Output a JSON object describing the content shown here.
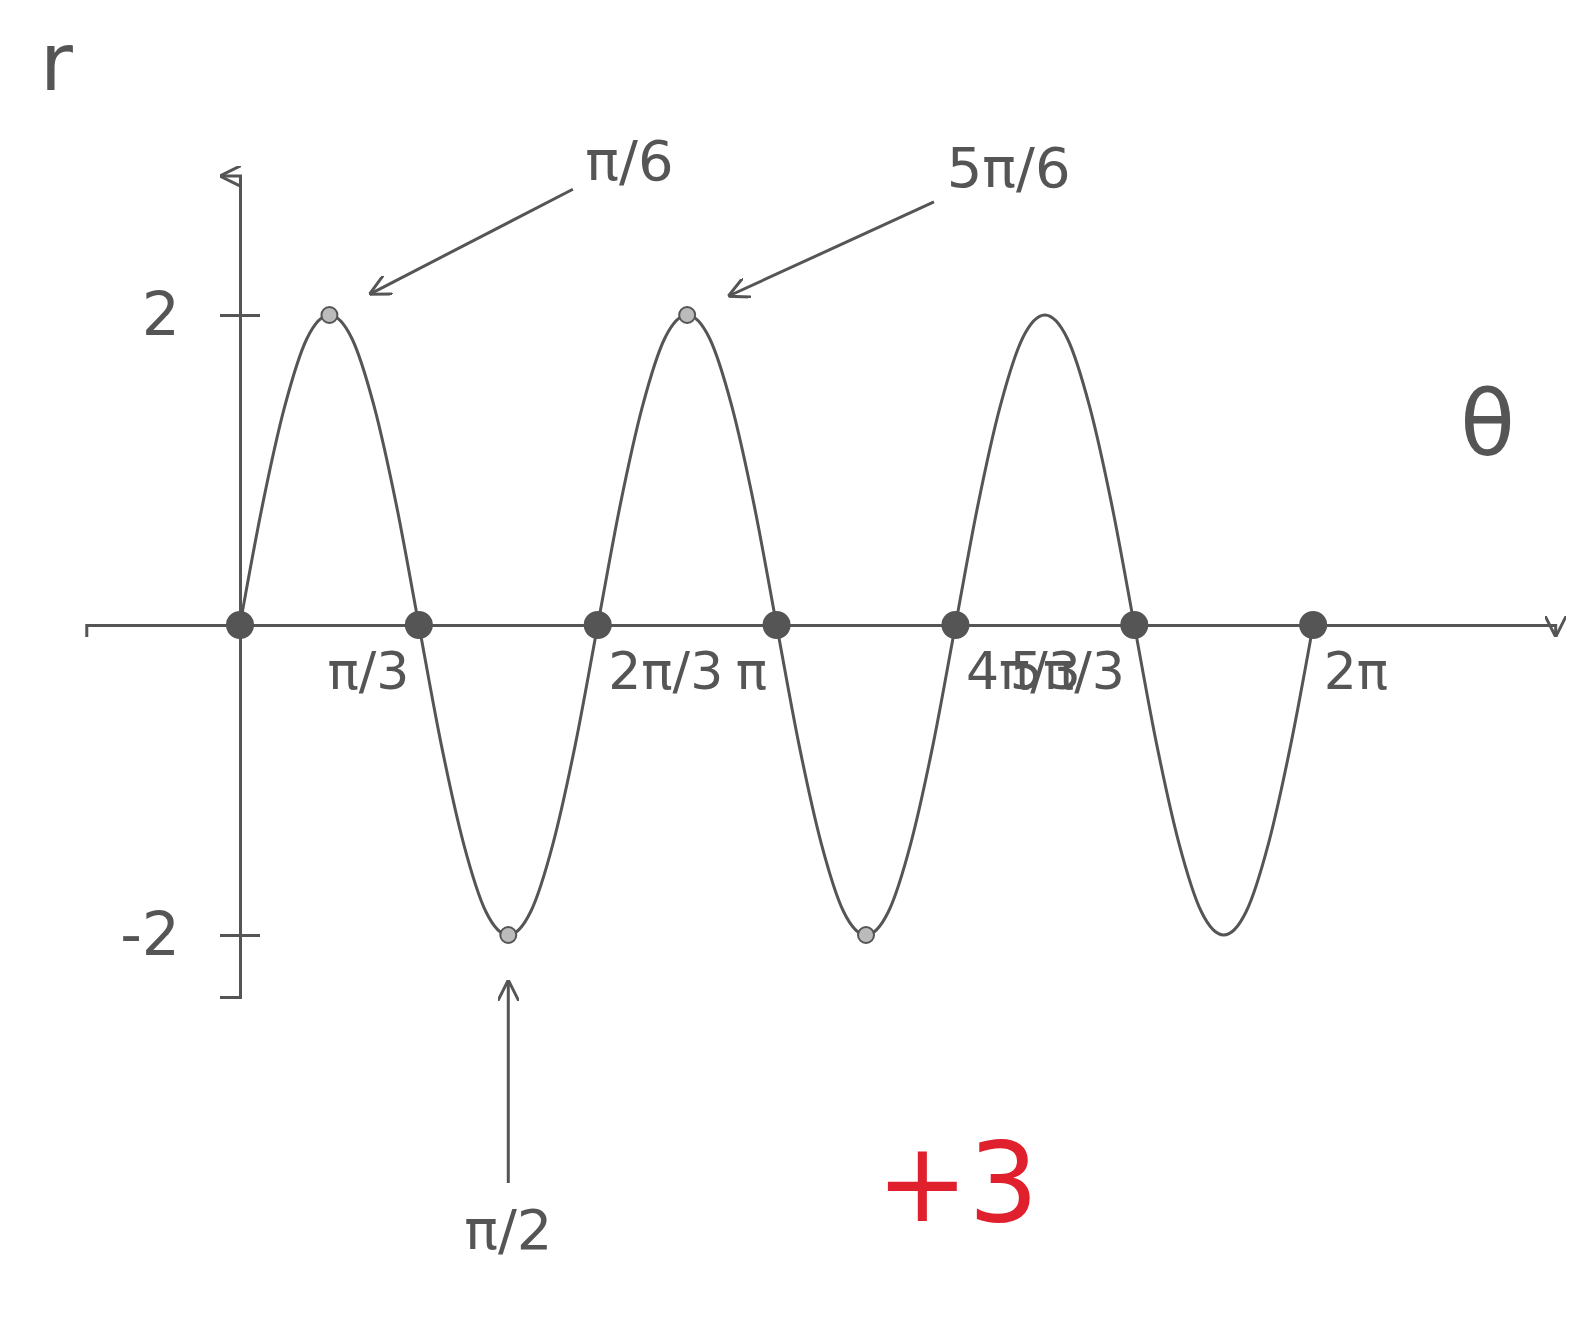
{
  "chart_data": {
    "type": "line",
    "x_label": "θ",
    "y_label": "r",
    "xlim": [
      -0.9,
      7.7
    ],
    "ylim": [
      -2.4,
      2.9
    ],
    "xticks": [
      {
        "value": 1.0472,
        "label": "π/3"
      },
      {
        "value": 2.0944,
        "label": "2π/3"
      },
      {
        "value": 3.1416,
        "label": "π"
      },
      {
        "value": 4.1888,
        "label": "4π/3"
      },
      {
        "value": 5.236,
        "label": "5π/3"
      },
      {
        "value": 6.2832,
        "label": "2π"
      }
    ],
    "yticks": [
      -2,
      2
    ],
    "grid": false,
    "series": [
      {
        "type": "line",
        "color": "#555555",
        "line_style": "solid",
        "x": [
          0,
          0.1309,
          0.2618,
          0.3927,
          0.5236,
          0.6545,
          0.7854,
          0.9163,
          1.0472,
          1.1781,
          1.309,
          1.4399,
          1.5708,
          1.7017,
          1.8326,
          1.9635,
          2.0944,
          2.2253,
          2.3562,
          2.4871,
          2.618,
          2.7489,
          2.8798,
          3.0107,
          3.1416,
          3.2725,
          3.4034,
          3.5343,
          3.6652,
          3.7961,
          3.927,
          4.0579,
          4.1888,
          4.3197,
          4.4506,
          4.5815,
          4.7124,
          4.8433,
          4.9742,
          5.1051,
          5.236,
          5.3669,
          5.4978,
          5.6287,
          5.7596,
          5.8905,
          6.0214,
          6.1523,
          6.2832
        ],
        "values": [
          0,
          0.77,
          1.41,
          1.85,
          2,
          1.85,
          1.41,
          0.77,
          0,
          -0.77,
          -1.41,
          -1.85,
          -2,
          -1.85,
          -1.41,
          -0.77,
          0,
          0.77,
          1.41,
          1.85,
          2,
          1.85,
          1.41,
          0.77,
          0,
          -0.77,
          -1.41,
          -1.85,
          -2,
          -1.85,
          -1.41,
          -0.77,
          0,
          0.77,
          1.41,
          1.85,
          2,
          1.85,
          1.41,
          0.77,
          0,
          -0.77,
          -1.41,
          -1.85,
          -2,
          -1.85,
          -1.41,
          -0.77,
          0
        ]
      },
      {
        "type": "scatter",
        "color": "#555555",
        "marker": "circle",
        "x": [
          0,
          1.0472,
          2.0944,
          3.1416,
          4.1888,
          5.236,
          6.2832,
          0.5236,
          2.618,
          1.5708,
          3.6652
        ],
        "values": [
          0,
          0,
          0,
          0,
          0,
          0,
          0,
          2,
          2,
          -2,
          -2
        ]
      }
    ],
    "annotations": [
      {
        "text": "π/6",
        "x": 2.28,
        "y": 3.0,
        "target": [
          0.5236,
          2
        ]
      },
      {
        "text": "5π/6",
        "x": 4.5,
        "y": 2.95,
        "target": [
          2.618,
          2
        ]
      },
      {
        "text": "π/2",
        "x": 1.5708,
        "y": -3.9,
        "target": [
          1.5708,
          -2
        ]
      },
      {
        "text": "+3",
        "x": 4.2,
        "y": -3.6,
        "color": "#e0202c"
      }
    ]
  }
}
